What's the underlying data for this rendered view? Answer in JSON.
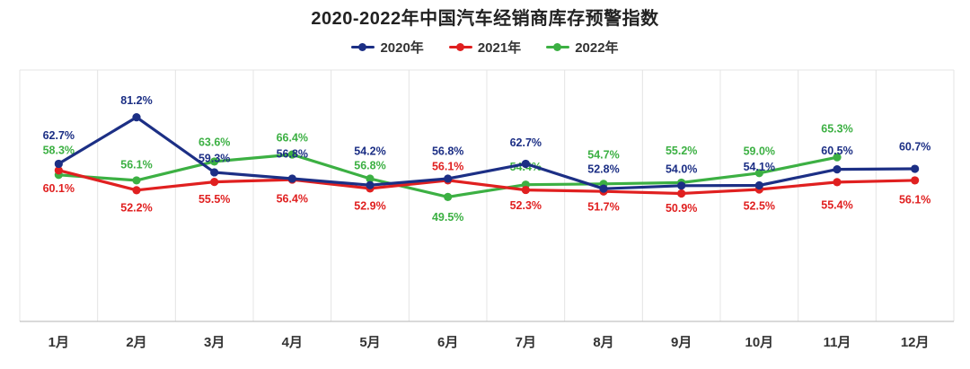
{
  "title": "2020-2022年中国汽车经销商库存预警指数",
  "legend": [
    {
      "label": "2020年",
      "color": "#1c2f85"
    },
    {
      "label": "2021年",
      "color": "#e02020"
    },
    {
      "label": "2022年",
      "color": "#3cb043"
    }
  ],
  "chart_data": {
    "type": "line",
    "title": "2020-2022年中国汽车经销商库存预警指数",
    "categories": [
      "1月",
      "2月",
      "3月",
      "4月",
      "5月",
      "6月",
      "7月",
      "8月",
      "9月",
      "10月",
      "11月",
      "12月"
    ],
    "xlabel": "",
    "ylabel": "",
    "ylim": [
      0,
      100
    ],
    "unit": "%",
    "y_axis_labels_visible": false,
    "grid": "vertical",
    "legend_position": "top",
    "series": [
      {
        "name": "2020年",
        "color": "#1c2f85",
        "values": [
          62.7,
          81.2,
          59.3,
          56.8,
          54.2,
          56.8,
          62.7,
          52.8,
          54.0,
          54.1,
          60.5,
          60.7
        ],
        "label_dy": [
          -32,
          -19,
          -16,
          -28,
          -38,
          -31,
          -24,
          -22,
          -19,
          -21,
          -21,
          -25
        ]
      },
      {
        "name": "2021年",
        "color": "#e02020",
        "values": [
          60.1,
          52.2,
          55.5,
          56.4,
          52.9,
          56.1,
          52.3,
          51.7,
          50.9,
          52.5,
          55.4,
          56.1
        ],
        "label_dy": [
          20,
          19,
          19,
          21,
          19,
          -16,
          17,
          17,
          16,
          18,
          25,
          21
        ]
      },
      {
        "name": "2022年",
        "color": "#3cb043",
        "values": [
          58.3,
          56.1,
          63.6,
          66.4,
          56.8,
          49.5,
          54.4,
          54.7,
          55.2,
          59.0,
          65.3,
          null
        ],
        "label_dy": [
          -28,
          -18,
          -22,
          -19,
          -15,
          22,
          -20,
          -33,
          -36,
          -25,
          -32,
          0
        ]
      }
    ]
  }
}
